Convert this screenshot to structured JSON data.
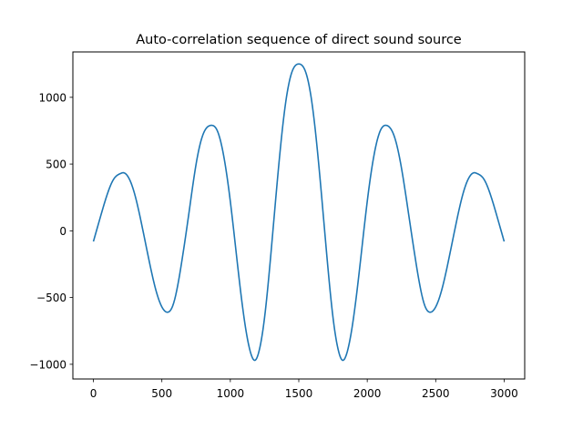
{
  "chart_data": {
    "type": "line",
    "title": "Auto-correlation sequence of direct sound source",
    "xlabel": "",
    "ylabel": "",
    "xlim": [
      -150,
      3150
    ],
    "ylim": [
      -1110,
      1340
    ],
    "x_ticks": [
      0,
      500,
      1000,
      1500,
      2000,
      2500,
      3000
    ],
    "x_tick_labels": [
      "0",
      "500",
      "1000",
      "1500",
      "2000",
      "2500",
      "3000"
    ],
    "y_ticks": [
      -1000,
      -500,
      0,
      500,
      1000
    ],
    "y_tick_labels": [
      "−1000",
      "−500",
      "0",
      "500",
      "1000"
    ],
    "grid": false,
    "legend": false,
    "line_color": "#1f77b4",
    "series": [
      {
        "x": [
          0,
          50,
          100,
          150,
          200,
          215,
          250,
          300,
          350,
          400,
          450,
          500,
          540,
          580,
          650,
          700,
          750,
          800,
          860,
          900,
          950,
          1000,
          1050,
          1100,
          1150,
          1180,
          1210,
          1250,
          1300,
          1350,
          1400,
          1450,
          1500,
          1550,
          1600,
          1650,
          1700,
          1750,
          1790,
          1820,
          1850,
          1900,
          1950,
          2000,
          2050,
          2100,
          2140,
          2200,
          2250,
          2300,
          2350,
          2420,
          2460,
          2500,
          2550,
          2600,
          2650,
          2700,
          2750,
          2785,
          2800,
          2850,
          2900,
          2950,
          3000
        ],
        "y": [
          -80,
          100,
          270,
          390,
          430,
          435,
          410,
          280,
          60,
          -190,
          -420,
          -570,
          -610,
          -560,
          -200,
          150,
          500,
          720,
          790,
          760,
          570,
          220,
          -230,
          -650,
          -920,
          -970,
          -900,
          -650,
          -130,
          450,
          930,
          1190,
          1250,
          1190,
          930,
          450,
          -130,
          -650,
          -900,
          -970,
          -920,
          -650,
          -230,
          220,
          570,
          760,
          790,
          700,
          470,
          140,
          -200,
          -560,
          -610,
          -570,
          -420,
          -190,
          60,
          280,
          410,
          435,
          430,
          390,
          270,
          100,
          -80
        ]
      }
    ]
  }
}
